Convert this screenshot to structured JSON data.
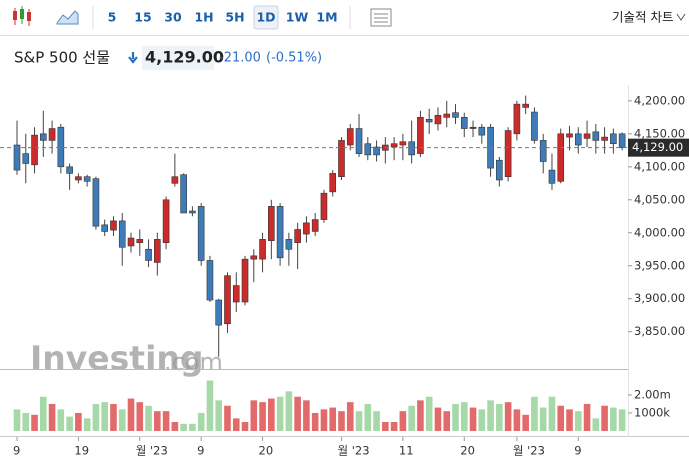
{
  "toolbar": {
    "intervals": [
      "5",
      "15",
      "30",
      "1H",
      "5H",
      "1D",
      "1W",
      "1M"
    ],
    "right_button": "기술적 차트"
  },
  "header": {
    "name": "S&P 500 선물",
    "price": "4,129.00",
    "change": "-21.00",
    "change_percent": "(-0.51%)"
  },
  "watermark": {
    "brand": "Investing",
    "suffix": ".com"
  },
  "chart_data": [
    {
      "type": "candlestick",
      "up_color": "#cc2b2b",
      "down_color": "#3d7cb8",
      "open": [
        4133,
        4120,
        4103,
        4150,
        4140,
        4160,
        4100,
        4080,
        4085,
        4082,
        4012,
        4004,
        4018,
        3980,
        3985,
        3975,
        3955,
        3985,
        4075,
        4088,
        4033,
        4040,
        3958,
        3898,
        3862,
        3895,
        3895,
        3960,
        3960,
        3988,
        4040,
        3990,
        3985,
        3998,
        4002,
        4020,
        4062,
        4085,
        4133,
        4158,
        4135,
        4130,
        4125,
        4130,
        4133,
        4138,
        4120,
        4172,
        4165,
        4175,
        4182,
        4175,
        4158,
        4160,
        4160,
        4110,
        4085,
        4150,
        4190,
        4183,
        4140,
        4095,
        4078,
        4145,
        4150,
        4143,
        4153,
        4140,
        4150,
        4150
      ],
      "high": [
        4170,
        4150,
        4160,
        4185,
        4170,
        4165,
        4105,
        4090,
        4088,
        4085,
        4020,
        4025,
        4030,
        4000,
        4005,
        3990,
        4000,
        4055,
        4120,
        4090,
        4040,
        4045,
        3965,
        3900,
        3940,
        3940,
        3965,
        3975,
        4000,
        4050,
        4045,
        4000,
        4015,
        4025,
        4030,
        4065,
        4095,
        4145,
        4165,
        4180,
        4145,
        4140,
        4145,
        4145,
        4150,
        4170,
        4185,
        4188,
        4190,
        4200,
        4195,
        4182,
        4170,
        4165,
        4165,
        4115,
        4160,
        4200,
        4208,
        4190,
        4150,
        4120,
        4158,
        4162,
        4160,
        4170,
        4165,
        4160,
        4158,
        4152
      ],
      "low": [
        4088,
        4075,
        4090,
        4115,
        4120,
        4090,
        4065,
        4075,
        4070,
        4005,
        3995,
        3995,
        3950,
        3970,
        3965,
        3948,
        3935,
        3975,
        4070,
        4030,
        4025,
        3950,
        3895,
        3812,
        3848,
        3880,
        3890,
        3925,
        3940,
        3960,
        3950,
        3950,
        3945,
        3985,
        3995,
        4015,
        4055,
        4080,
        4125,
        4115,
        4110,
        4108,
        4105,
        4110,
        4110,
        4105,
        4115,
        4150,
        4155,
        4160,
        4165,
        4145,
        4145,
        4135,
        4085,
        4070,
        4078,
        4140,
        4180,
        4135,
        4090,
        4065,
        4075,
        4125,
        4120,
        4130,
        4120,
        4120,
        4120,
        4125
      ],
      "close": [
        4095,
        4105,
        4148,
        4140,
        4158,
        4100,
        4090,
        4085,
        4078,
        4010,
        4002,
        4018,
        3978,
        3992,
        3990,
        3958,
        3990,
        4050,
        4085,
        4030,
        4030,
        3958,
        3898,
        3860,
        3935,
        3920,
        3960,
        3965,
        3990,
        4040,
        3962,
        3975,
        4005,
        4015,
        4020,
        4060,
        4090,
        4140,
        4158,
        4120,
        4118,
        4118,
        4133,
        4135,
        4138,
        4118,
        4175,
        4168,
        4178,
        4180,
        4175,
        4158,
        4160,
        4148,
        4098,
        4080,
        4155,
        4195,
        4195,
        4140,
        4108,
        4075,
        4150,
        4150,
        4133,
        4150,
        4140,
        4145,
        4135,
        4129
      ],
      "ylim": [
        3795,
        4224
      ],
      "yticks": [
        {
          "value": 3850,
          "label": "3,850.00"
        },
        {
          "value": 3900,
          "label": "3,900.00"
        },
        {
          "value": 3950,
          "label": "3,950.00"
        },
        {
          "value": 4000,
          "label": "4,000.00"
        },
        {
          "value": 4050,
          "label": "4,050.00"
        },
        {
          "value": 4100,
          "label": "4,100.00"
        },
        {
          "value": 4150,
          "label": "4,150.00"
        },
        {
          "value": 4200,
          "label": "4,200.00"
        }
      ],
      "reference_line": {
        "value": 4129,
        "label": "4,129.00"
      },
      "xticks": [
        {
          "value": 0,
          "label": "9"
        },
        {
          "value": 7,
          "label": "19"
        },
        {
          "value": 14,
          "label": "월 '23"
        },
        {
          "value": 21,
          "label": "9"
        },
        {
          "value": 28,
          "label": "20"
        },
        {
          "value": 37,
          "label": "월 '23"
        },
        {
          "value": 44,
          "label": "11"
        },
        {
          "value": 51,
          "label": "20"
        },
        {
          "value": 57,
          "label": "월 '23"
        },
        {
          "value": 64,
          "label": "9"
        }
      ],
      "grid": false
    },
    {
      "type": "bar",
      "up_color": "#e36a6a",
      "down_color": "#a6d8a8",
      "values": [
        1.2,
        1.0,
        0.9,
        1.9,
        1.5,
        1.2,
        0.8,
        1.0,
        0.7,
        1.5,
        1.6,
        1.5,
        1.2,
        1.8,
        1.6,
        1.4,
        1.1,
        1.1,
        0.5,
        0.4,
        0.4,
        1.0,
        2.8,
        1.7,
        1.4,
        0.7,
        0.5,
        1.7,
        1.6,
        1.8,
        1.9,
        2.2,
        1.9,
        1.7,
        1.0,
        1.2,
        1.3,
        1.1,
        1.6,
        1.1,
        1.5,
        1.1,
        0.5,
        0.5,
        1.1,
        1.4,
        1.7,
        1.9,
        1.3,
        1.1,
        1.5,
        1.6,
        1.3,
        1.2,
        1.7,
        1.5,
        1.6,
        1.2,
        0.9,
        1.9,
        1.3,
        1.9,
        1.4,
        1.2,
        1.1,
        1.5,
        0.7,
        1.4,
        1.3,
        1.2
      ],
      "ylim": [
        0,
        2.94
      ],
      "yticks": [
        {
          "value": 1,
          "label": "1000k"
        },
        {
          "value": 2,
          "label": "2.00m"
        }
      ]
    }
  ]
}
